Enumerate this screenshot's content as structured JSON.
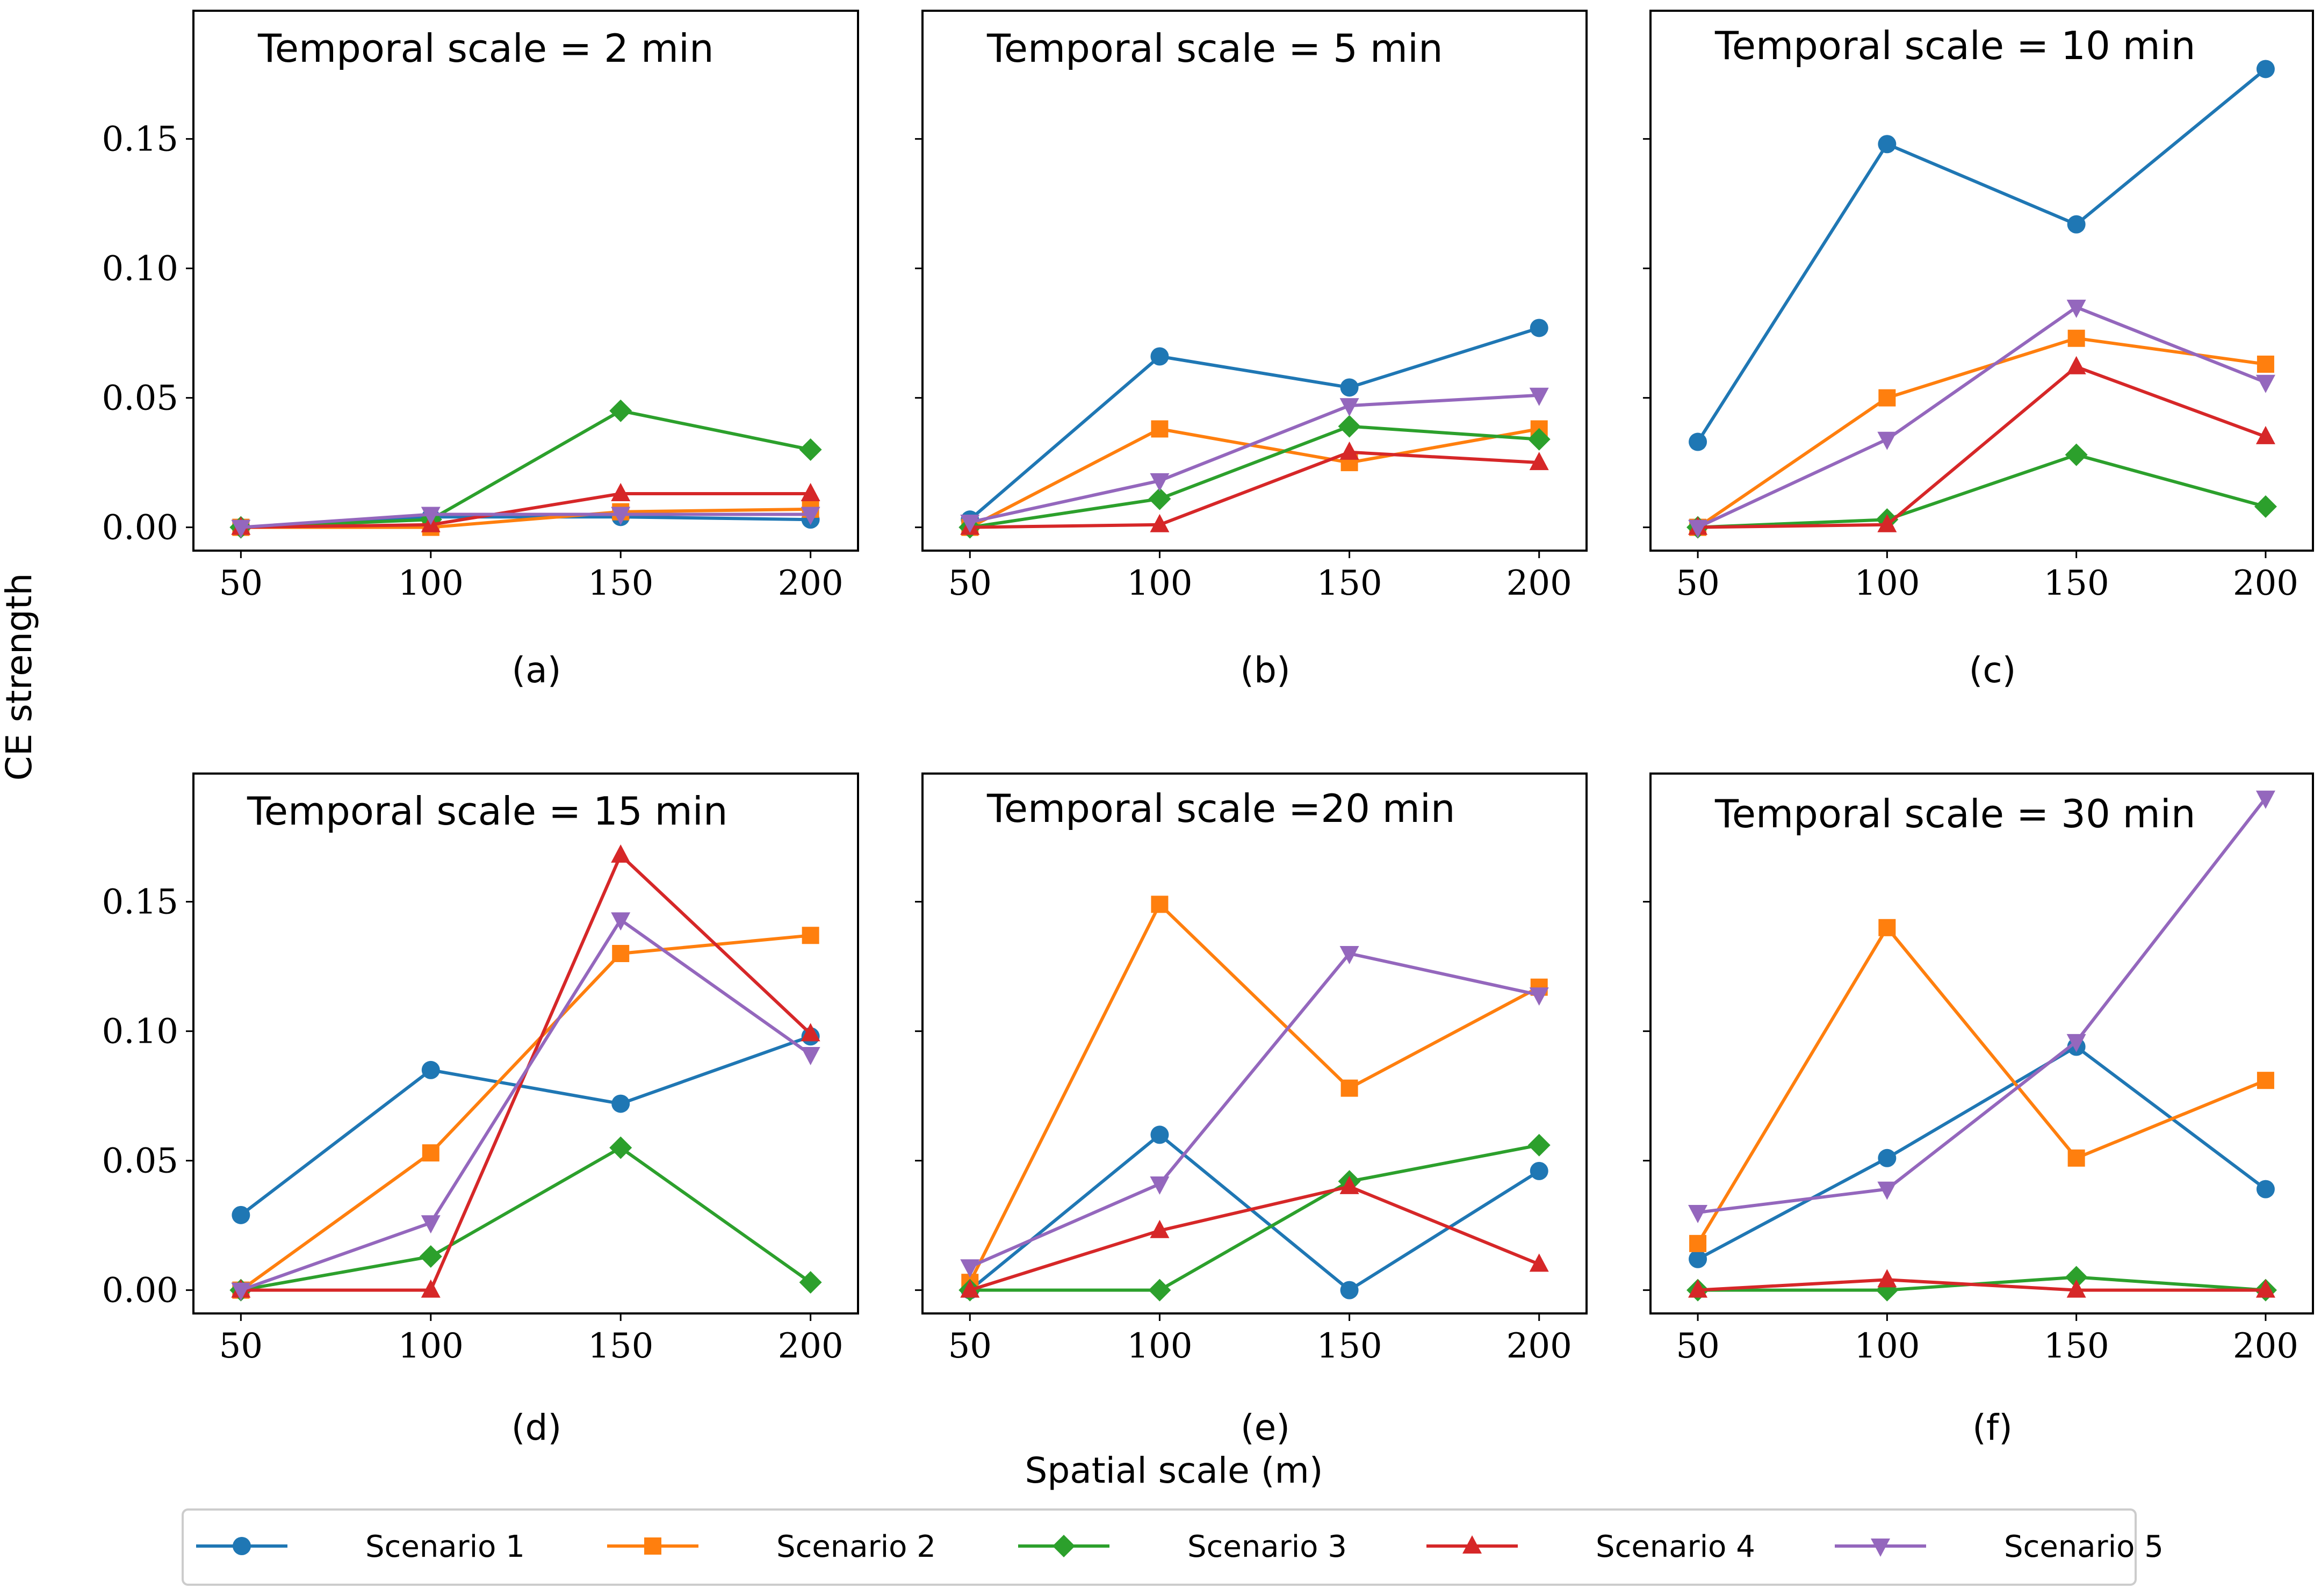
{
  "chart_data": {
    "type": "line",
    "ylabel": "CE strength",
    "xlabel": "Spatial scale (m)",
    "x": [
      50,
      100,
      150,
      200
    ],
    "xticks": [
      "50",
      "100",
      "150",
      "200"
    ],
    "yticks": [
      "0.00",
      "0.05",
      "0.10",
      "0.15"
    ],
    "ylim": [
      -0.009,
      0.1995
    ],
    "colors": {
      "Scenario 1": "#1f77b4",
      "Scenario 2": "#ff7f0e",
      "Scenario 3": "#2ca02c",
      "Scenario 4": "#d62728",
      "Scenario 5": "#9467bd"
    },
    "legend": [
      "Scenario 1",
      "Scenario 2",
      "Scenario 3",
      "Scenario 4",
      "Scenario 5"
    ],
    "panels": [
      {
        "title": "Temporal scale = 2 min",
        "label": "(a)",
        "series": [
          {
            "name": "Scenario 1",
            "values": [
              0.0,
              0.004,
              0.004,
              0.003
            ]
          },
          {
            "name": "Scenario 2",
            "values": [
              0.0,
              0.0,
              0.006,
              0.007
            ]
          },
          {
            "name": "Scenario 3",
            "values": [
              0.0,
              0.003,
              0.045,
              0.03
            ]
          },
          {
            "name": "Scenario 4",
            "values": [
              0.0,
              0.001,
              0.013,
              0.013
            ]
          },
          {
            "name": "Scenario 5",
            "values": [
              0.0,
              0.005,
              0.005,
              0.005
            ]
          }
        ]
      },
      {
        "title": "Temporal scale = 5 min",
        "label": "(b)",
        "series": [
          {
            "name": "Scenario 1",
            "values": [
              0.003,
              0.066,
              0.054,
              0.077
            ]
          },
          {
            "name": "Scenario 2",
            "values": [
              0.0,
              0.038,
              0.025,
              0.038
            ]
          },
          {
            "name": "Scenario 3",
            "values": [
              0.0,
              0.011,
              0.039,
              0.034
            ]
          },
          {
            "name": "Scenario 4",
            "values": [
              0.0,
              0.001,
              0.029,
              0.025
            ]
          },
          {
            "name": "Scenario 5",
            "values": [
              0.002,
              0.018,
              0.047,
              0.051
            ]
          }
        ]
      },
      {
        "title": "Temporal scale = 10 min",
        "label": "(c)",
        "series": [
          {
            "name": "Scenario 1",
            "values": [
              0.033,
              0.148,
              0.117,
              0.177
            ]
          },
          {
            "name": "Scenario 2",
            "values": [
              0.0,
              0.05,
              0.073,
              0.063
            ]
          },
          {
            "name": "Scenario 3",
            "values": [
              0.0,
              0.003,
              0.028,
              0.008
            ]
          },
          {
            "name": "Scenario 4",
            "values": [
              0.0,
              0.001,
              0.062,
              0.035
            ]
          },
          {
            "name": "Scenario 5",
            "values": [
              0.0,
              0.034,
              0.085,
              0.056
            ]
          }
        ]
      },
      {
        "title": "Temporal scale = 15 min",
        "label": "(d)",
        "series": [
          {
            "name": "Scenario 1",
            "values": [
              0.029,
              0.085,
              0.072,
              0.098
            ]
          },
          {
            "name": "Scenario 2",
            "values": [
              0.0,
              0.053,
              0.13,
              0.137
            ]
          },
          {
            "name": "Scenario 3",
            "values": [
              0.0,
              0.013,
              0.055,
              0.003
            ]
          },
          {
            "name": "Scenario 4",
            "values": [
              0.0,
              0.0,
              0.168,
              0.099
            ]
          },
          {
            "name": "Scenario 5",
            "values": [
              0.0,
              0.026,
              0.143,
              0.091
            ]
          }
        ]
      },
      {
        "title": "Temporal scale =20 min",
        "label": "(e)",
        "series": [
          {
            "name": "Scenario 1",
            "values": [
              0.0,
              0.06,
              0.0,
              0.046
            ]
          },
          {
            "name": "Scenario 2",
            "values": [
              0.003,
              0.149,
              0.078,
              0.117
            ]
          },
          {
            "name": "Scenario 3",
            "values": [
              0.0,
              0.0,
              0.042,
              0.056
            ]
          },
          {
            "name": "Scenario 4",
            "values": [
              0.0,
              0.023,
              0.04,
              0.01
            ]
          },
          {
            "name": "Scenario 5",
            "values": [
              0.009,
              0.041,
              0.13,
              0.114
            ]
          }
        ]
      },
      {
        "title": "Temporal scale = 30 min",
        "label": "(f)",
        "series": [
          {
            "name": "Scenario 1",
            "values": [
              0.012,
              0.051,
              0.094,
              0.039
            ]
          },
          {
            "name": "Scenario 2",
            "values": [
              0.018,
              0.14,
              0.051,
              0.081
            ]
          },
          {
            "name": "Scenario 3",
            "values": [
              0.0,
              0.0,
              0.005,
              0.0
            ]
          },
          {
            "name": "Scenario 4",
            "values": [
              0.0,
              0.004,
              0.0,
              0.0
            ]
          },
          {
            "name": "Scenario 5",
            "values": [
              0.03,
              0.039,
              0.096,
              0.19
            ]
          }
        ]
      }
    ]
  }
}
